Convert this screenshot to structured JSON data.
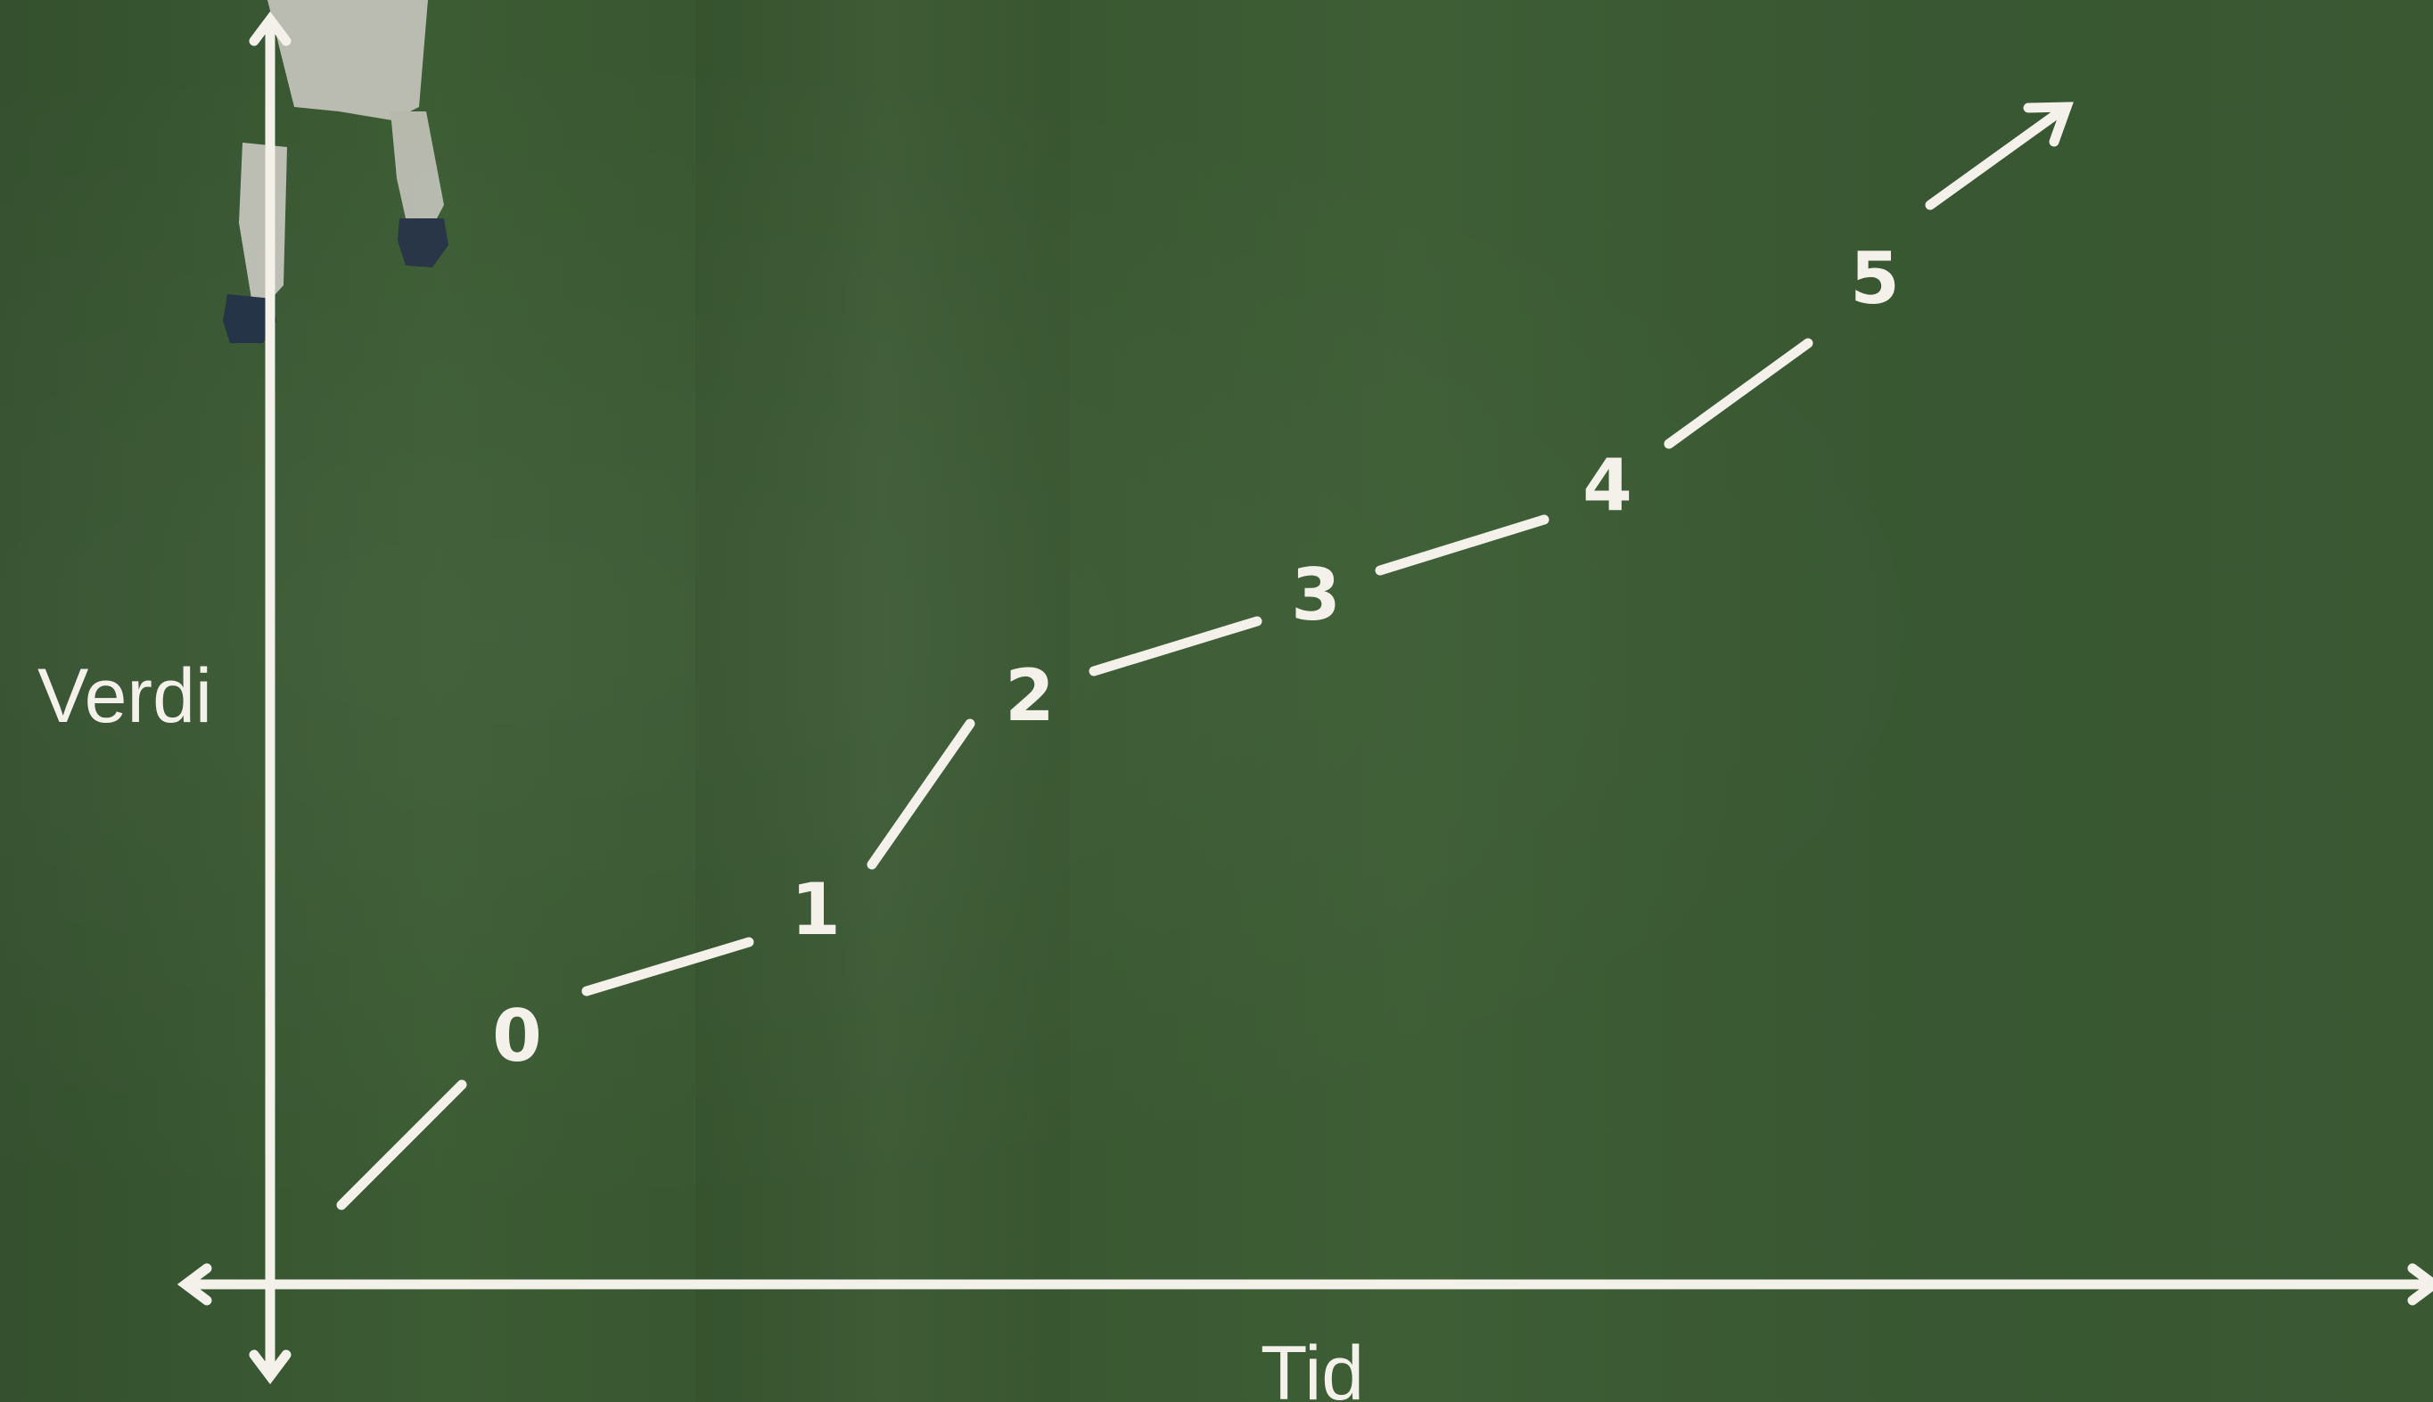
{
  "axes": {
    "y_label": "Verdi",
    "x_label": "Tid"
  },
  "steps": [
    "0",
    "1",
    "2",
    "3",
    "4",
    "5"
  ],
  "colors": {
    "line": "#f4f1ea",
    "background": "#3b5a33"
  }
}
